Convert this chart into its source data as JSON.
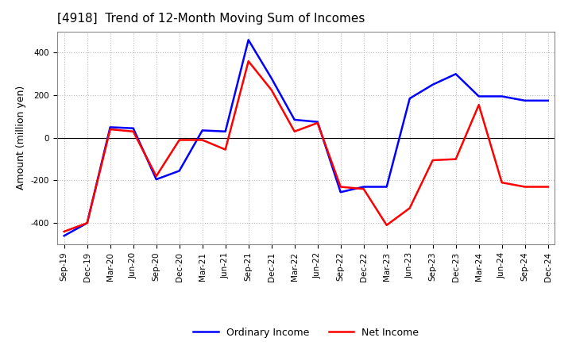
{
  "title": "[4918]  Trend of 12-Month Moving Sum of Incomes",
  "ylabel": "Amount (million yen)",
  "x_labels": [
    "Sep-19",
    "Dec-19",
    "Mar-20",
    "Jun-20",
    "Sep-20",
    "Dec-20",
    "Mar-21",
    "Jun-21",
    "Sep-21",
    "Dec-21",
    "Mar-22",
    "Jun-22",
    "Sep-22",
    "Dec-22",
    "Mar-23",
    "Jun-23",
    "Sep-23",
    "Dec-23",
    "Mar-24",
    "Jun-24",
    "Sep-24",
    "Dec-24"
  ],
  "ordinary_income": [
    -460,
    -400,
    50,
    45,
    -195,
    -155,
    35,
    30,
    460,
    280,
    85,
    75,
    -255,
    -230,
    -230,
    185,
    250,
    300,
    195,
    195,
    175,
    175
  ],
  "net_income": [
    -440,
    -400,
    40,
    30,
    -180,
    -10,
    -10,
    -55,
    360,
    225,
    30,
    70,
    -230,
    -240,
    -410,
    -330,
    -105,
    -100,
    155,
    -210,
    -230,
    -230
  ],
  "ordinary_color": "#0000ff",
  "net_color": "#ff0000",
  "ylim": [
    -500,
    500
  ],
  "yticks": [
    -400,
    -200,
    0,
    200,
    400
  ],
  "background_color": "#ffffff",
  "grid_color": "#bbbbbb",
  "title_fontsize": 11,
  "axis_fontsize": 9,
  "tick_fontsize": 7.5,
  "legend_fontsize": 9
}
